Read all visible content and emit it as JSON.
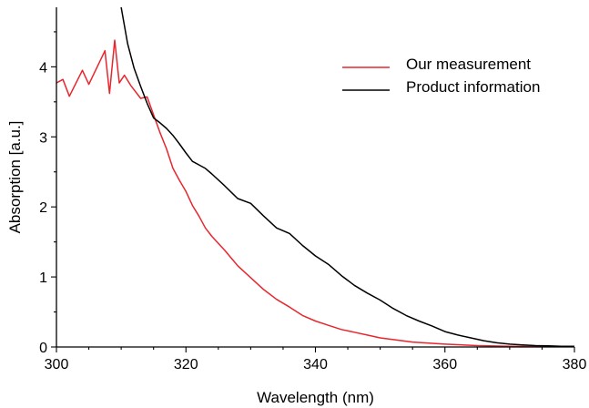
{
  "chart_data": {
    "type": "line",
    "title": "",
    "xlabel": "Wavelength (nm)",
    "ylabel": "Absorption [a.u.]",
    "xlim": [
      300,
      380
    ],
    "ylim": [
      0,
      4.85
    ],
    "x_ticks": [
      300,
      320,
      340,
      360,
      380
    ],
    "y_ticks": [
      0,
      1,
      2,
      3,
      4
    ],
    "grid": false,
    "legend_position": "top-right",
    "series": [
      {
        "name": "Our measurement",
        "color": "#e8262d",
        "x": [
          300,
          301,
          302,
          304,
          305,
          307.5,
          308.2,
          309,
          309.7,
          310.5,
          311.5,
          313,
          314,
          316,
          317,
          318,
          319,
          320,
          321,
          322,
          323,
          324,
          326,
          328,
          330,
          332,
          334,
          336,
          338,
          340,
          342,
          344,
          346,
          348,
          350,
          355,
          360,
          365,
          370,
          375,
          380
        ],
        "y": [
          3.77,
          3.82,
          3.58,
          3.95,
          3.75,
          4.23,
          3.62,
          4.38,
          3.77,
          3.88,
          3.73,
          3.55,
          3.57,
          3.06,
          2.83,
          2.55,
          2.38,
          2.22,
          2.02,
          1.87,
          1.7,
          1.58,
          1.38,
          1.16,
          0.99,
          0.82,
          0.68,
          0.57,
          0.45,
          0.37,
          0.31,
          0.25,
          0.21,
          0.17,
          0.13,
          0.07,
          0.04,
          0.02,
          0.01,
          0.005,
          0.0
        ]
      },
      {
        "name": "Product information",
        "color": "#000000",
        "x": [
          310,
          311,
          312,
          313,
          314,
          315,
          316,
          317,
          318,
          319,
          320,
          321,
          322,
          323,
          324,
          326,
          328,
          330,
          332,
          334,
          336,
          338,
          340,
          342,
          344,
          346,
          348,
          350,
          352,
          354,
          356,
          358,
          360,
          362,
          364,
          366,
          368,
          370,
          372,
          374,
          376,
          378,
          380
        ],
        "y": [
          4.85,
          4.33,
          3.98,
          3.72,
          3.48,
          3.27,
          3.2,
          3.12,
          3.02,
          2.9,
          2.77,
          2.65,
          2.6,
          2.55,
          2.47,
          2.3,
          2.12,
          2.05,
          1.87,
          1.7,
          1.62,
          1.45,
          1.3,
          1.18,
          1.02,
          0.88,
          0.77,
          0.67,
          0.55,
          0.45,
          0.37,
          0.3,
          0.22,
          0.17,
          0.13,
          0.09,
          0.06,
          0.04,
          0.03,
          0.02,
          0.015,
          0.01,
          0.01
        ]
      }
    ]
  }
}
